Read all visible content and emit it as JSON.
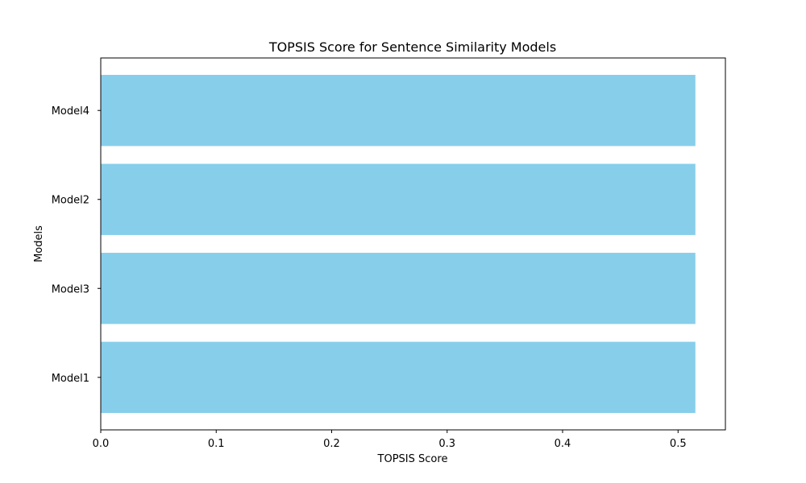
{
  "chart_data": {
    "type": "bar",
    "orientation": "horizontal",
    "title": "TOPSIS Score for Sentence Similarity Models",
    "xlabel": "TOPSIS Score",
    "ylabel": "Models",
    "categories": [
      "Model1",
      "Model3",
      "Model2",
      "Model4"
    ],
    "values": [
      0.515,
      0.515,
      0.515,
      0.515
    ],
    "xlim": [
      0,
      0.541
    ],
    "xticks": [
      0.0,
      0.1,
      0.2,
      0.3,
      0.4,
      0.5
    ],
    "xtick_labels": [
      "0.0",
      "0.1",
      "0.2",
      "0.3",
      "0.4",
      "0.5"
    ],
    "grid": false,
    "bar_color": "#87CEEB"
  }
}
